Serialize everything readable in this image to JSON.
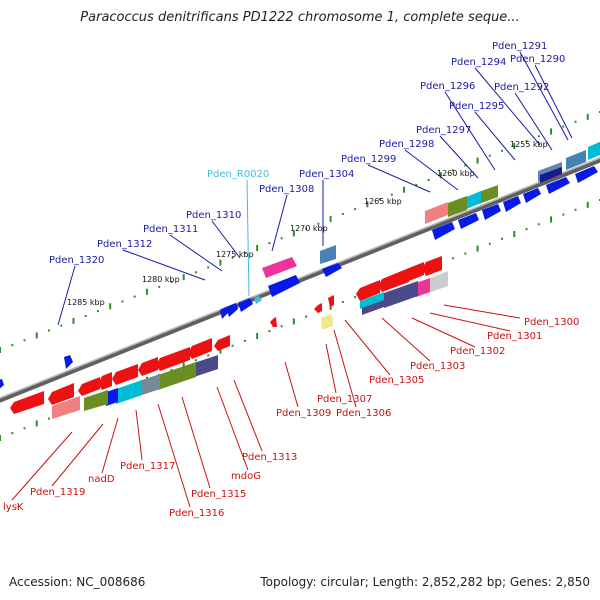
{
  "title": "Paracoccus denitrificans PD1222 chromosome 1, complete seque...",
  "footer": {
    "accession": "Accession: NC_008686",
    "summary": "Topology: circular; Length: 2,852,282 bp; Genes: 2,850"
  },
  "colors": {
    "forward_label": "#1a1aa6",
    "reverse_label": "#cc1111",
    "rna_label": "#44bbdd",
    "backbone": "#888888"
  },
  "scale_labels": [
    "1255 kbp",
    "1260 kbp",
    "1265 kbp",
    "1270 kbp",
    "1275 kbp",
    "1280 kbp",
    "1285 kbp"
  ],
  "forward_genes": [
    "Pden_1291",
    "Pden_1290",
    "Pden_1294",
    "Pden_1292",
    "Pden_1296",
    "Pden_1295",
    "Pden_1297",
    "Pden_1298",
    "Pden_1299",
    "Pden_1304",
    "Pden_1308",
    "Pden_1310",
    "Pden_1311",
    "Pden_1312",
    "Pden_1320"
  ],
  "rna_genes": [
    "Pden_R0020"
  ],
  "reverse_genes": [
    "Pden_1300",
    "Pden_1301",
    "Pden_1302",
    "Pden_1303",
    "Pden_1305",
    "Pden_1306",
    "Pden_1307",
    "Pden_1309",
    "Pden_1313",
    "mdoG",
    "Pden_1315",
    "Pden_1316",
    "Pden_1317",
    "nadD",
    "Pden_1319",
    "lysK"
  ]
}
